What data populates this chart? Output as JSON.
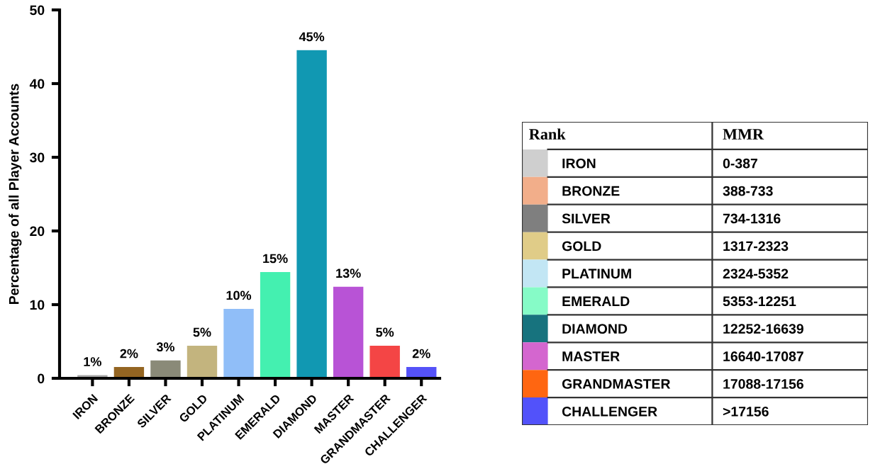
{
  "chart_data": [
    {
      "type": "bar",
      "ylabel": "Percentage of all Player Accounts",
      "categories": [
        "IRON",
        "BRONZE",
        "SILVER",
        "GOLD",
        "PLATINUM",
        "EMERALD",
        "DIAMOND",
        "MASTER",
        "GRANDMASTER",
        "CHALLENGER"
      ],
      "values": [
        0.5,
        1.6,
        2.5,
        4.5,
        9.5,
        14.5,
        44.6,
        12.5,
        4.5,
        1.6
      ],
      "colors": [
        "#a8a8a8",
        "#946522",
        "#8a8a78",
        "#c3b47e",
        "#90bef8",
        "#44f0b0",
        "#1198b2",
        "#b853d6",
        "#f44545",
        "#5552f8"
      ],
      "value_labels": [
        "1%",
        "2%",
        "3%",
        "5%",
        "10%",
        "15%",
        "45%",
        "13%",
        "5%",
        "2%"
      ],
      "ylim": [
        0,
        50
      ],
      "yticks": [
        0,
        10,
        20,
        30,
        40,
        50
      ],
      "grid": false,
      "legend": false
    },
    {
      "type": "other",
      "categories": [
        "Rank",
        "MMR"
      ],
      "y_categories": [
        "IRON",
        "BRONZE",
        "SILVER",
        "GOLD",
        "PLATINUM",
        "EMERALD",
        "DIAMOND",
        "MASTER",
        "GRANDMASTER",
        "CHALLENGER"
      ],
      "cell_labels": [
        [
          "0-387"
        ],
        [
          "388-733"
        ],
        [
          "734-1316"
        ],
        [
          "1317-2323"
        ],
        [
          "2324-5352"
        ],
        [
          "5353-12251"
        ],
        [
          "12252-16639"
        ],
        [
          "16640-17087"
        ],
        [
          "17088-17156"
        ],
        [
          ">17156"
        ]
      ],
      "colors": [
        "#cfcfcf",
        "#f2ae8a",
        "#7f7f7f",
        "#e0cc88",
        "#c2e6f4",
        "#86fbc7",
        "#17737e",
        "#d466cf",
        "#ff6611",
        "#5252fa"
      ]
    }
  ]
}
